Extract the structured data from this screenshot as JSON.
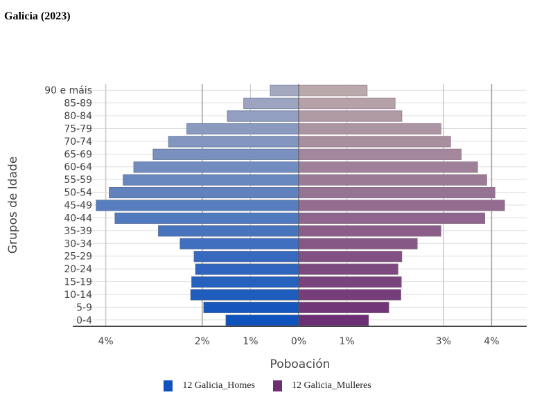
{
  "chart_data": {
    "type": "bar",
    "orientation": "horizontal",
    "title": "Galicia (2023)",
    "xlabel": "Poboación",
    "ylabel": "Grupos de Idade",
    "categories": [
      "0-4",
      "5-9",
      "10-14",
      "15-19",
      "20-24",
      "25-29",
      "30-34",
      "35-39",
      "40-44",
      "45-49",
      "50-54",
      "55-59",
      "60-64",
      "65-69",
      "70-74",
      "75-79",
      "80-84",
      "85-89",
      "90 e máis"
    ],
    "series": [
      {
        "name": "12 Galicia_Homes",
        "color": "#0d52bd",
        "top_color": "#a4a9c0",
        "side": "left",
        "values": [
          1.51,
          1.97,
          2.24,
          2.22,
          2.14,
          2.17,
          2.46,
          2.91,
          3.81,
          4.2,
          3.93,
          3.64,
          3.42,
          3.02,
          2.7,
          2.32,
          1.48,
          1.14,
          0.59
        ]
      },
      {
        "name": "12 Galicia_Mulleres",
        "color": "#6c2f74",
        "top_color": "#b9a9ab",
        "side": "right",
        "values": [
          1.45,
          1.87,
          2.12,
          2.13,
          2.06,
          2.14,
          2.46,
          2.95,
          3.86,
          4.27,
          4.07,
          3.9,
          3.71,
          3.37,
          3.15,
          2.95,
          2.14,
          2,
          1.42
        ]
      }
    ],
    "x_ticks": [
      {
        "value": -4,
        "label": "4%"
      },
      {
        "value": -2,
        "label": "2%"
      },
      {
        "value": -1,
        "label": "1%"
      },
      {
        "value": 0,
        "label": "0%"
      },
      {
        "value": 1,
        "label": "1%"
      },
      {
        "value": 3,
        "label": "3%"
      },
      {
        "value": 4,
        "label": "4%"
      }
    ],
    "xlim": [
      -4.5,
      4.3
    ],
    "grid": true,
    "legend_position": "bottom"
  }
}
